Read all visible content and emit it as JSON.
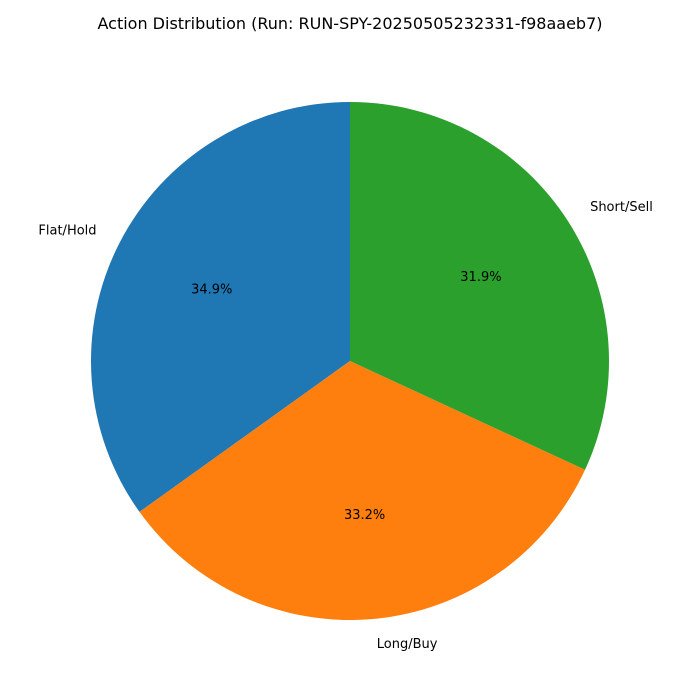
{
  "chart_data": {
    "type": "pie",
    "title": "Action Distribution (Run: RUN-SPY-20250505232331-f98aaeb7)",
    "start_angle_deg": 90,
    "direction": "counterclockwise",
    "slices": [
      {
        "label": "Flat/Hold",
        "value": 34.9,
        "pct_label": "34.9%",
        "color": "#1f77b4"
      },
      {
        "label": "Long/Buy",
        "value": 33.2,
        "pct_label": "33.2%",
        "color": "#ff7f0e"
      },
      {
        "label": "Short/Sell",
        "value": 31.9,
        "pct_label": "31.9%",
        "color": "#2ca02c"
      }
    ]
  }
}
